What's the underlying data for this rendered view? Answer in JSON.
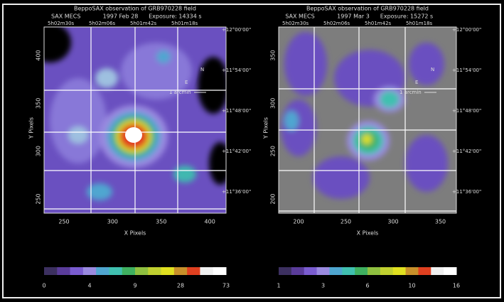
{
  "panels": [
    {
      "title": "BeppoSAX observation of GRB970228 field",
      "subtitle": [
        "SAX MECS",
        "1997 Feb 28",
        "Exposure: 14334 s"
      ],
      "ra_labels": [
        "5h02m30s",
        "5h02m06s",
        "5h01m42s",
        "5h01m18s"
      ],
      "dec_labels": [
        "+12°00'00\"",
        "+11°54'00\"",
        "+11°48'00\"",
        "+11°42'00\"",
        "+11°36'00\""
      ],
      "y_axis_label": "Y Pixels",
      "y_ticks": [
        "400",
        "350",
        "300",
        "250"
      ],
      "x_axis_label": "X Pixels",
      "x_ticks": [
        "250",
        "300",
        "350",
        "400"
      ],
      "scale_label": "1 arcmin",
      "compass": [
        "N",
        "E"
      ],
      "colorbar_labels": [
        "0",
        "4",
        "9",
        "28",
        "73"
      ]
    },
    {
      "title": "BeppoSAX observation of GRB970228 field",
      "subtitle": [
        "SAX MECS",
        "1997 Mar 3",
        "Exposure: 15272 s"
      ],
      "ra_labels": [
        "5h02m30s",
        "5h02m06s",
        "5h01m42s",
        "5h01m18s"
      ],
      "dec_labels": [
        "+12°00'00\"",
        "+11°54'00\"",
        "+11°48'00\"",
        "+11°42'00\"",
        "+11°36'00\""
      ],
      "y_axis_label": "Y Pixels",
      "y_ticks": [
        "350",
        "300",
        "250",
        "200"
      ],
      "x_axis_label": "X Pixels",
      "x_ticks": [
        "200",
        "250",
        "300",
        "350"
      ],
      "scale_label": "1 arcmin",
      "compass": [
        "N",
        "E"
      ],
      "colorbar_labels": [
        "1",
        "3",
        "6",
        "10",
        "16"
      ]
    }
  ]
}
